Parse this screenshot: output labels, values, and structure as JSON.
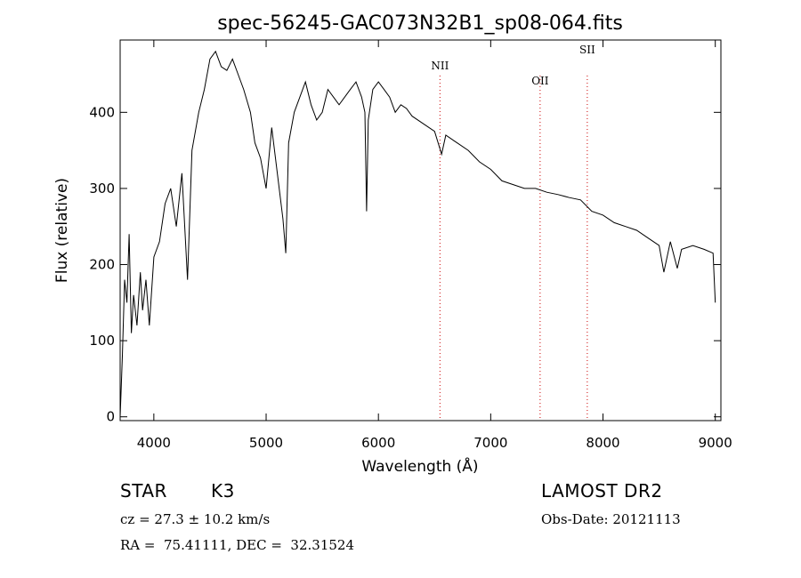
{
  "chart_data": {
    "type": "line",
    "title": "spec-56245-GAC073N32B1_sp08-064.fits",
    "xlabel": "Wavelength (Å)",
    "ylabel": "Flux (relative)",
    "xlim": [
      3700,
      9050
    ],
    "ylim": [
      -5,
      495
    ],
    "xticks": [
      4000,
      5000,
      6000,
      7000,
      8000,
      9000
    ],
    "yticks": [
      0,
      100,
      200,
      300,
      400
    ],
    "grid": false,
    "line_color": "#000000",
    "series": [
      {
        "values_x": [
          3700,
          3720,
          3740,
          3760,
          3780,
          3800,
          3820,
          3850,
          3880,
          3900,
          3930,
          3960,
          4000,
          4050,
          4100,
          4150,
          4200,
          4250,
          4300,
          4340,
          4400,
          4450,
          4500,
          4550,
          4600,
          4650,
          4700,
          4750,
          4800,
          4860,
          4900,
          4950,
          5000,
          5050,
          5100,
          5150,
          5175,
          5200,
          5250,
          5300,
          5350,
          5400,
          5450,
          5500,
          5550,
          5600,
          5650,
          5700,
          5750,
          5800,
          5850,
          5880,
          5895,
          5910,
          5950,
          6000,
          6050,
          6100,
          6150,
          6200,
          6250,
          6300,
          6400,
          6500,
          6563,
          6600,
          6700,
          6800,
          6900,
          7000,
          7100,
          7200,
          7300,
          7400,
          7500,
          7600,
          7700,
          7800,
          7900,
          8000,
          8100,
          8200,
          8300,
          8400,
          8500,
          8542,
          8600,
          8662,
          8700,
          8800,
          8900,
          8980,
          9000
        ],
        "values_y": [
          0,
          80,
          180,
          150,
          240,
          110,
          160,
          120,
          190,
          140,
          180,
          120,
          210,
          230,
          280,
          300,
          250,
          320,
          180,
          350,
          400,
          430,
          470,
          480,
          460,
          455,
          470,
          450,
          430,
          400,
          360,
          340,
          300,
          380,
          320,
          260,
          215,
          360,
          400,
          420,
          440,
          410,
          390,
          400,
          430,
          420,
          410,
          420,
          430,
          440,
          420,
          400,
          270,
          390,
          430,
          440,
          430,
          420,
          400,
          410,
          405,
          395,
          385,
          375,
          345,
          370,
          360,
          350,
          335,
          325,
          310,
          305,
          300,
          300,
          295,
          292,
          288,
          285,
          270,
          265,
          255,
          250,
          245,
          235,
          225,
          190,
          230,
          195,
          220,
          225,
          220,
          215,
          150
        ]
      }
    ],
    "annotations": [
      {
        "label": "NII",
        "x": 6548
      },
      {
        "label": "OII",
        "x": 7440
      },
      {
        "label": "SII",
        "x": 7860
      }
    ]
  },
  "info": {
    "object_class": "STAR",
    "subclass": "K3",
    "survey": "LAMOST DR2",
    "redshift": "cz = 27.3 ± 10.2 km/s",
    "obs_date": "Obs-Date: 20121113",
    "coords": "RA =  75.41111, DEC =  32.31524"
  }
}
